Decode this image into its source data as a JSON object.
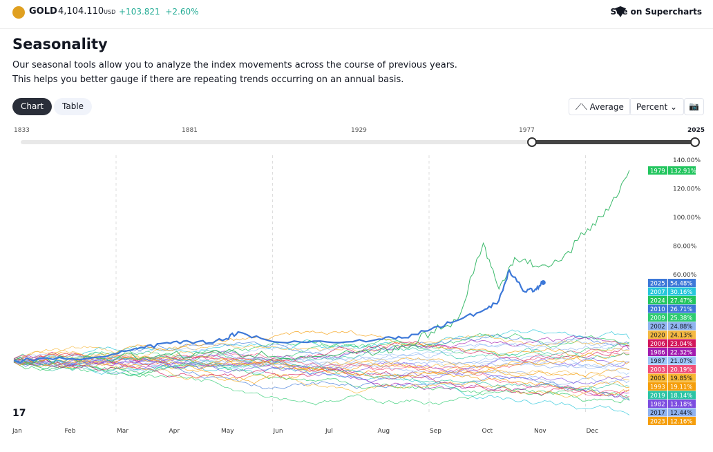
{
  "header": {
    "symbol": "GOLD",
    "price": "4,104.110",
    "currency": "USD",
    "change": "+103.821",
    "change_pct": "+2.60%",
    "supercharts": "See on Supercharts"
  },
  "title": "Seasonality",
  "description": [
    "Our seasonal tools allow you to analyze the index movements across the course of previous years.",
    "This helps you better gauge if there are repeating trends occurring on an annual basis."
  ],
  "tabs": {
    "chart": "Chart",
    "table": "Table"
  },
  "controls": {
    "average": "Average",
    "percent": "Percent"
  },
  "range": {
    "labels": [
      "1833",
      "1881",
      "1929",
      "1977",
      "2025"
    ]
  },
  "chart_data": {
    "type": "line",
    "xlabel": "",
    "ylabel": "Percent",
    "months": [
      "Jan",
      "Feb",
      "Mar",
      "Apr",
      "May",
      "Jun",
      "Jul",
      "Aug",
      "Sep",
      "Oct",
      "Nov",
      "Dec"
    ],
    "yticks": [
      "140.00%",
      "120.00%",
      "100.00%",
      "80.00%",
      "60.00%"
    ],
    "ylim": [
      -45,
      145
    ],
    "highlight": [
      {
        "name": "1979",
        "color": "#3cba6c",
        "points": [
          [
            0,
            0
          ],
          [
            1,
            1
          ],
          [
            2,
            2
          ],
          [
            3,
            4
          ],
          [
            4,
            5
          ],
          [
            5,
            3
          ],
          [
            6,
            4
          ],
          [
            7,
            6
          ],
          [
            7.5,
            9
          ],
          [
            8,
            20
          ],
          [
            8.5,
            28
          ],
          [
            9,
            82
          ],
          [
            9.3,
            50
          ],
          [
            9.6,
            72
          ],
          [
            10,
            66
          ],
          [
            10.5,
            70
          ],
          [
            11,
            92
          ],
          [
            11.4,
            105
          ],
          [
            11.8,
            132.91
          ]
        ]
      },
      {
        "name": "2025",
        "color": "#3d78d8",
        "points": [
          [
            0,
            0
          ],
          [
            1,
            1
          ],
          [
            2,
            5
          ],
          [
            2.5,
            9
          ],
          [
            3,
            12
          ],
          [
            3.5,
            13
          ],
          [
            4,
            14
          ],
          [
            4.3,
            20
          ],
          [
            5,
            13
          ],
          [
            6,
            13
          ],
          [
            7,
            15
          ],
          [
            7.5,
            16
          ],
          [
            8,
            22
          ],
          [
            8.5,
            28
          ],
          [
            9,
            35
          ],
          [
            9.3,
            42
          ],
          [
            9.5,
            63
          ],
          [
            9.8,
            48
          ],
          [
            10,
            50
          ],
          [
            10.15,
            54.48
          ]
        ]
      }
    ],
    "legend": [
      {
        "year": "1979",
        "value": "132.91%",
        "color": "#22c55e"
      },
      {
        "year": "2025",
        "value": "54.48%",
        "color": "#3d78d8"
      },
      {
        "year": "2007",
        "value": "30.16%",
        "color": "#26c6da"
      },
      {
        "year": "2024",
        "value": "27.47%",
        "color": "#22c55e"
      },
      {
        "year": "2010",
        "value": "26.71%",
        "color": "#3d78d8"
      },
      {
        "year": "2009",
        "value": "25.38%",
        "color": "#2ecc71"
      },
      {
        "year": "2002",
        "value": "24.88%",
        "color": "#90b4f0"
      },
      {
        "year": "2020",
        "value": "24.13%",
        "color": "#f5b942"
      },
      {
        "year": "2006",
        "value": "23.04%",
        "color": "#d3165a"
      },
      {
        "year": "1986",
        "value": "22.32%",
        "color": "#a21caf"
      },
      {
        "year": "1987",
        "value": "21.07%",
        "color": "#9ec5f8"
      },
      {
        "year": "2003",
        "value": "20.19%",
        "color": "#f0507a"
      },
      {
        "year": "2005",
        "value": "19.85%",
        "color": "#f7b733"
      },
      {
        "year": "1993",
        "value": "19.11%",
        "color": "#f59e0b"
      },
      {
        "year": "2019",
        "value": "18.14%",
        "color": "#2bc4a4"
      },
      {
        "year": "1982",
        "value": "13.18%",
        "color": "#7c4de0"
      },
      {
        "year": "2017",
        "value": "12.44%",
        "color": "#8fb2f0"
      },
      {
        "year": "2023",
        "value": "12.16%",
        "color": "#f59e0b"
      }
    ]
  }
}
